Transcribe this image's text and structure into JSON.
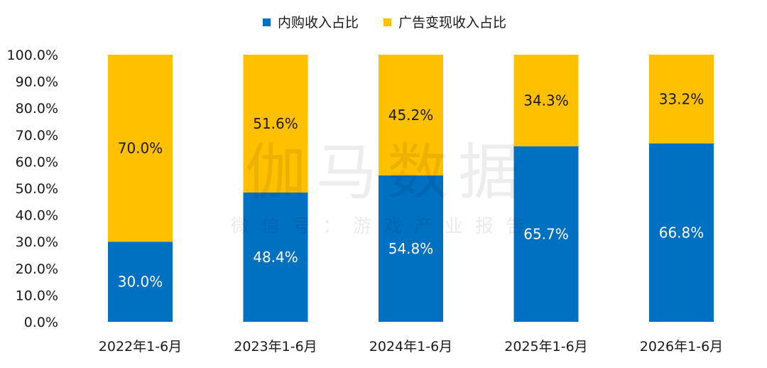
{
  "watermark": {
    "title": "伽马数据",
    "subtitle": "微信号：游戏产业报告"
  },
  "colors": {
    "in_app": "#0070C0",
    "ads": "#FFC000"
  },
  "chart_data": {
    "type": "bar",
    "stacked": true,
    "categories": [
      "2022年1-6月",
      "2023年1-6月",
      "2024年1-6月",
      "2025年1-6月",
      "2026年1-6月"
    ],
    "series": [
      {
        "name": "内购收入占比",
        "values": [
          30.0,
          48.4,
          54.8,
          65.7,
          66.8
        ],
        "labels": [
          "30.0%",
          "48.4%",
          "54.8%",
          "65.7%",
          "66.8%"
        ],
        "color": "#0070C0"
      },
      {
        "name": "广告变现收入占比",
        "values": [
          70.0,
          51.6,
          45.2,
          34.3,
          33.2
        ],
        "labels": [
          "70.0%",
          "51.6%",
          "45.2%",
          "34.3%",
          "33.2%"
        ],
        "color": "#FFC000"
      }
    ],
    "ylim": [
      0,
      100
    ],
    "yticks": [
      "0.0%",
      "10.0%",
      "20.0%",
      "30.0%",
      "40.0%",
      "50.0%",
      "60.0%",
      "70.0%",
      "80.0%",
      "90.0%",
      "100.0%"
    ],
    "legend": "top-center",
    "grid": false
  }
}
